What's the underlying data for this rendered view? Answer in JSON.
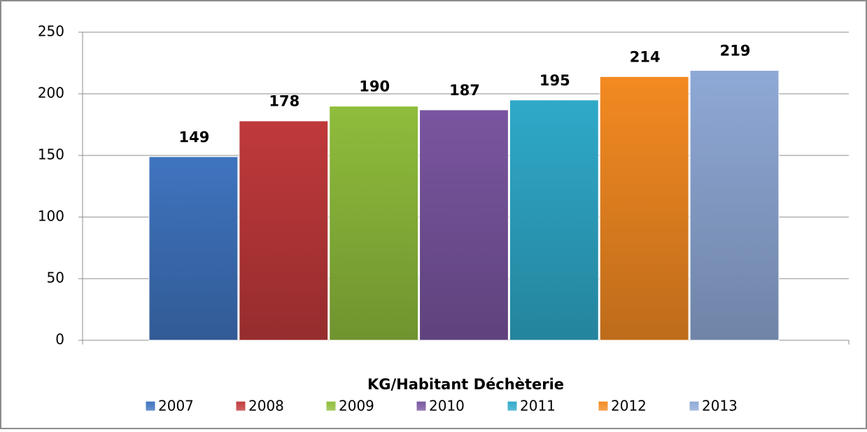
{
  "chart_data": {
    "type": "bar",
    "categories": [
      "KG/Habitant Déchèterie"
    ],
    "series": [
      {
        "name": "2007",
        "color": "#3f74bf",
        "values": [
          149
        ]
      },
      {
        "name": "2008",
        "color": "#c0393b",
        "values": [
          178
        ]
      },
      {
        "name": "2009",
        "color": "#8fbd3c",
        "values": [
          190
        ]
      },
      {
        "name": "2010",
        "color": "#7a55a0",
        "values": [
          187
        ]
      },
      {
        "name": "2011",
        "color": "#2fa9c9",
        "values": [
          195
        ]
      },
      {
        "name": "2012",
        "color": "#f38a22",
        "values": [
          214
        ]
      },
      {
        "name": "2013",
        "color": "#8fa9d6",
        "values": [
          219
        ]
      }
    ],
    "ylim": [
      0,
      250
    ],
    "yticks": [
      0,
      50,
      100,
      150,
      200,
      250
    ],
    "grid": true,
    "legend": "bottom"
  }
}
